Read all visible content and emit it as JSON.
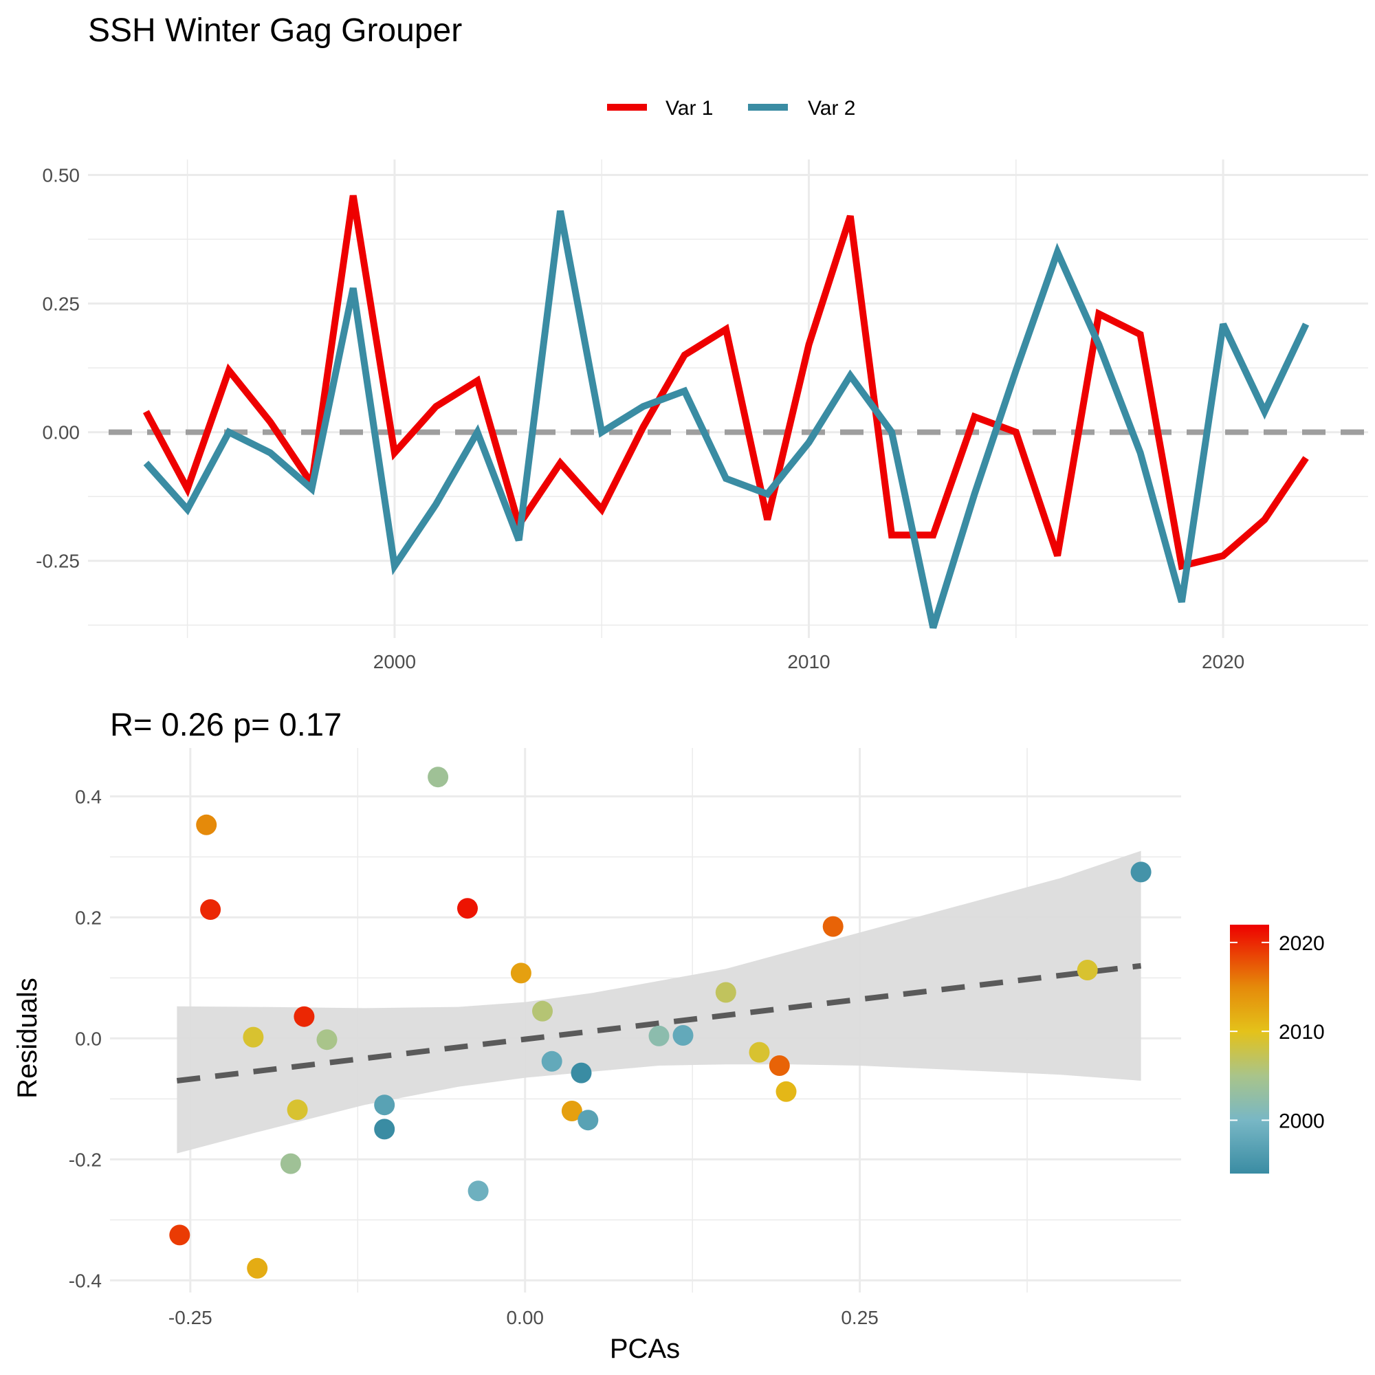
{
  "title": "SSH Winter Gag Grouper",
  "colors": {
    "var1": "#EE0000",
    "var2": "#3A8CA3",
    "zero_line": "#9E9E9E",
    "trend_line": "#5A5A5A",
    "ribbon": "#DCDCDC",
    "grid": "#EBEBEB"
  },
  "chart_data": [
    {
      "type": "line",
      "xlim": [
        1992.6,
        2023.5
      ],
      "ylim": [
        -0.4,
        0.53
      ],
      "x_ticks": [
        2000,
        2010,
        2020
      ],
      "x_tick_labels": [
        "2000",
        "2010",
        "2020"
      ],
      "y_ticks": [
        -0.25,
        0.0,
        0.25,
        0.5
      ],
      "y_tick_labels": [
        "-0.25",
        "0.00",
        "0.25",
        "0.50"
      ],
      "zero_line": 0,
      "legend_position": "top",
      "x": [
        1994,
        1995,
        1996,
        1997,
        1998,
        1999,
        2000,
        2001,
        2002,
        2003,
        2004,
        2005,
        2006,
        2007,
        2008,
        2009,
        2010,
        2011,
        2012,
        2013,
        2014,
        2015,
        2016,
        2017,
        2018,
        2019,
        2020,
        2021,
        2022
      ],
      "series": [
        {
          "name": "Var 1",
          "color": "#EE0000",
          "values": [
            0.04,
            -0.11,
            0.12,
            0.02,
            -0.1,
            0.46,
            -0.04,
            0.05,
            0.1,
            -0.18,
            -0.06,
            -0.15,
            0.01,
            0.15,
            0.2,
            -0.17,
            0.17,
            0.42,
            -0.2,
            -0.2,
            0.03,
            0.0,
            -0.24,
            0.23,
            0.19,
            -0.26,
            -0.24,
            -0.17,
            -0.05
          ]
        },
        {
          "name": "Var 2",
          "color": "#3A8CA3",
          "values": [
            -0.06,
            -0.15,
            0.0,
            -0.04,
            -0.11,
            0.28,
            -0.26,
            -0.14,
            0.0,
            -0.21,
            0.43,
            0.0,
            0.05,
            0.08,
            -0.09,
            -0.12,
            -0.02,
            0.11,
            0.0,
            -0.38,
            -0.12,
            0.12,
            0.35,
            0.17,
            -0.04,
            -0.33,
            0.21,
            0.04,
            0.21
          ]
        }
      ]
    },
    {
      "type": "scatter",
      "title": "R= 0.26  p= 0.17",
      "xlabel": "PCAs",
      "ylabel": "Residuals",
      "xlim": [
        -0.31,
        0.49
      ],
      "ylim": [
        -0.42,
        0.48
      ],
      "x_ticks": [
        -0.25,
        0.0,
        0.25
      ],
      "x_tick_labels": [
        "-0.25",
        "0.00",
        "0.25"
      ],
      "y_ticks": [
        -0.4,
        -0.2,
        0.0,
        0.2,
        0.4
      ],
      "y_tick_labels": [
        "-0.4",
        "-0.2",
        "0.0",
        "0.2",
        "0.4"
      ],
      "trend_line": {
        "x": [
          -0.26,
          0.46
        ],
        "y": [
          -0.07,
          0.12
        ]
      },
      "confidence_band": {
        "x": [
          -0.26,
          -0.2,
          -0.12,
          -0.05,
          0.0,
          0.05,
          0.1,
          0.15,
          0.2,
          0.25,
          0.3,
          0.35,
          0.4,
          0.46
        ],
        "lower": [
          -0.19,
          -0.155,
          -0.11,
          -0.08,
          -0.065,
          -0.055,
          -0.045,
          -0.043,
          -0.043,
          -0.045,
          -0.05,
          -0.055,
          -0.06,
          -0.07
        ],
        "upper": [
          0.053,
          0.052,
          0.05,
          0.052,
          0.06,
          0.075,
          0.095,
          0.115,
          0.145,
          0.175,
          0.205,
          0.235,
          0.265,
          0.31
        ]
      },
      "colorbar": {
        "position": "right",
        "range": [
          1994,
          2022
        ],
        "ticks": [
          2000,
          2010,
          2020
        ],
        "tick_labels": [
          "2000",
          "2010",
          "2020"
        ],
        "stops": [
          {
            "year": 1994,
            "color": "#3A8CA3"
          },
          {
            "year": 2000,
            "color": "#78B7C5"
          },
          {
            "year": 2005,
            "color": "#A9C48A"
          },
          {
            "year": 2010,
            "color": "#E4C21A"
          },
          {
            "year": 2015,
            "color": "#E58A0A"
          },
          {
            "year": 2022,
            "color": "#EE0000"
          }
        ]
      },
      "points": [
        {
          "x": 0.46,
          "y": 0.275,
          "year": 1995
        },
        {
          "x": 0.42,
          "y": 0.113,
          "year": 2009
        },
        {
          "x": 0.23,
          "y": 0.185,
          "year": 2017
        },
        {
          "x": 0.15,
          "y": 0.076,
          "year": 2007
        },
        {
          "x": 0.175,
          "y": -0.023,
          "year": 2009
        },
        {
          "x": 0.19,
          "y": -0.045,
          "year": 2017
        },
        {
          "x": 0.195,
          "y": -0.088,
          "year": 2011
        },
        {
          "x": 0.1,
          "y": 0.004,
          "year": 2002
        },
        {
          "x": 0.118,
          "y": 0.005,
          "year": 1998
        },
        {
          "x": 0.013,
          "y": 0.045,
          "year": 2006
        },
        {
          "x": -0.003,
          "y": 0.108,
          "year": 2013
        },
        {
          "x": 0.02,
          "y": -0.038,
          "year": 1998
        },
        {
          "x": 0.042,
          "y": -0.057,
          "year": 1994
        },
        {
          "x": 0.035,
          "y": -0.12,
          "year": 2013
        },
        {
          "x": 0.047,
          "y": -0.135,
          "year": 1997
        },
        {
          "x": -0.035,
          "y": -0.252,
          "year": 1999
        },
        {
          "x": -0.065,
          "y": 0.432,
          "year": 2004
        },
        {
          "x": -0.043,
          "y": 0.215,
          "year": 2021
        },
        {
          "x": -0.105,
          "y": -0.11,
          "year": 1997
        },
        {
          "x": -0.105,
          "y": -0.15,
          "year": 1994
        },
        {
          "x": -0.148,
          "y": -0.002,
          "year": 2005
        },
        {
          "x": -0.165,
          "y": 0.036,
          "year": 2020
        },
        {
          "x": -0.17,
          "y": -0.118,
          "year": 2009
        },
        {
          "x": -0.175,
          "y": -0.207,
          "year": 2004
        },
        {
          "x": -0.203,
          "y": 0.002,
          "year": 2009
        },
        {
          "x": -0.2,
          "y": -0.38,
          "year": 2012
        },
        {
          "x": -0.238,
          "y": 0.353,
          "year": 2015
        },
        {
          "x": -0.235,
          "y": 0.213,
          "year": 2020
        },
        {
          "x": -0.258,
          "y": -0.325,
          "year": 2019
        }
      ]
    }
  ]
}
